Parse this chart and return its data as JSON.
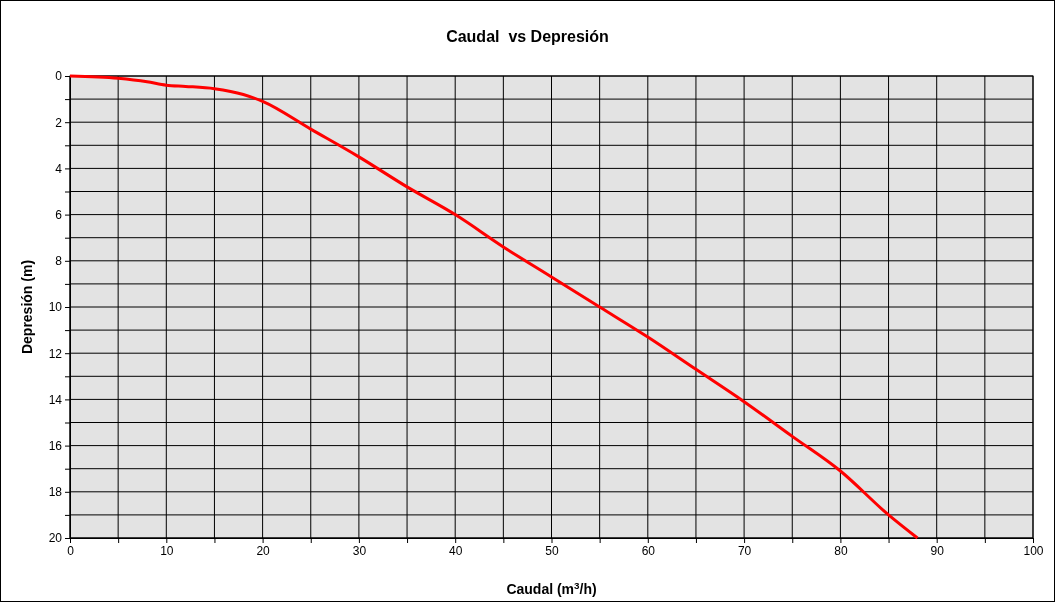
{
  "chart_data": {
    "type": "line",
    "title": "Caudal  vs Depresión",
    "xlabel": "Caudal (m$^{3}$/h)",
    "ylabel": "Depresión (m)",
    "x": [
      0,
      5,
      8,
      10,
      12,
      15,
      18,
      20,
      25,
      30,
      35,
      40,
      45,
      50,
      55,
      60,
      65,
      70,
      75,
      80,
      85,
      88
    ],
    "series": [
      {
        "color": "#ff0000",
        "values": [
          0,
          0.1,
          0.25,
          0.4,
          0.45,
          0.55,
          0.8,
          1.1,
          2.3,
          3.5,
          4.8,
          6,
          7.4,
          8.7,
          10,
          11.3,
          12.7,
          14.1,
          15.6,
          17.1,
          19,
          20
        ]
      }
    ],
    "xlim": [
      0,
      100
    ],
    "xticks": [
      0,
      {
        "value": 5,
        "label": null
      },
      10,
      {
        "value": 15,
        "label": null
      },
      20,
      {
        "value": 25,
        "label": null
      },
      30,
      {
        "value": 35,
        "label": null
      },
      40,
      {
        "value": 45,
        "label": null
      },
      50,
      {
        "value": 55,
        "label": null
      },
      60,
      {
        "value": 65,
        "label": null
      },
      70,
      {
        "value": 75,
        "label": null
      },
      80,
      {
        "value": 85,
        "label": null
      },
      90,
      {
        "value": 95,
        "label": null
      },
      100
    ],
    "ylim": [
      20,
      0
    ],
    "yticks": [
      0,
      {
        "value": 1,
        "label": null
      },
      2,
      {
        "value": 3,
        "label": null
      },
      4,
      {
        "value": 5,
        "label": null
      },
      6,
      {
        "value": 7,
        "label": null
      },
      8,
      {
        "value": 9,
        "label": null
      },
      10,
      {
        "value": 11,
        "label": null
      },
      12,
      {
        "value": 13,
        "label": null
      },
      14,
      {
        "value": 15,
        "label": null
      },
      16,
      {
        "value": 17,
        "label": null
      },
      18,
      {
        "value": 19,
        "label": null
      },
      20
    ],
    "grid": true,
    "marker": "none",
    "line_style": "solid"
  }
}
